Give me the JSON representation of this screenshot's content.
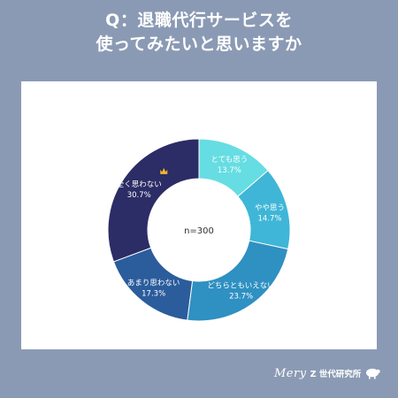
{
  "title": {
    "line1": "Q：退職代行サービスを",
    "line2": "使ってみたいと思いますか"
  },
  "chart_data": {
    "type": "pie",
    "center_label": "n=300",
    "categories": [
      "とても思う",
      "やや思う",
      "どちらともいえない",
      "あまり思わない",
      "全く思わない"
    ],
    "values": [
      13.7,
      14.7,
      23.7,
      17.3,
      30.7
    ],
    "value_labels": [
      "13.7%",
      "14.7%",
      "23.7%",
      "17.3%",
      "30.7%"
    ],
    "colors": [
      "#66dde2",
      "#3fb6d7",
      "#2f90c2",
      "#2b5c9c",
      "#2c2c66"
    ],
    "highlight": "crown-icon on 全く思わない"
  },
  "footer": {
    "brand_script": "Mery",
    "brand_text": "Z 世代研究所",
    "icon": "sheep-icon"
  }
}
